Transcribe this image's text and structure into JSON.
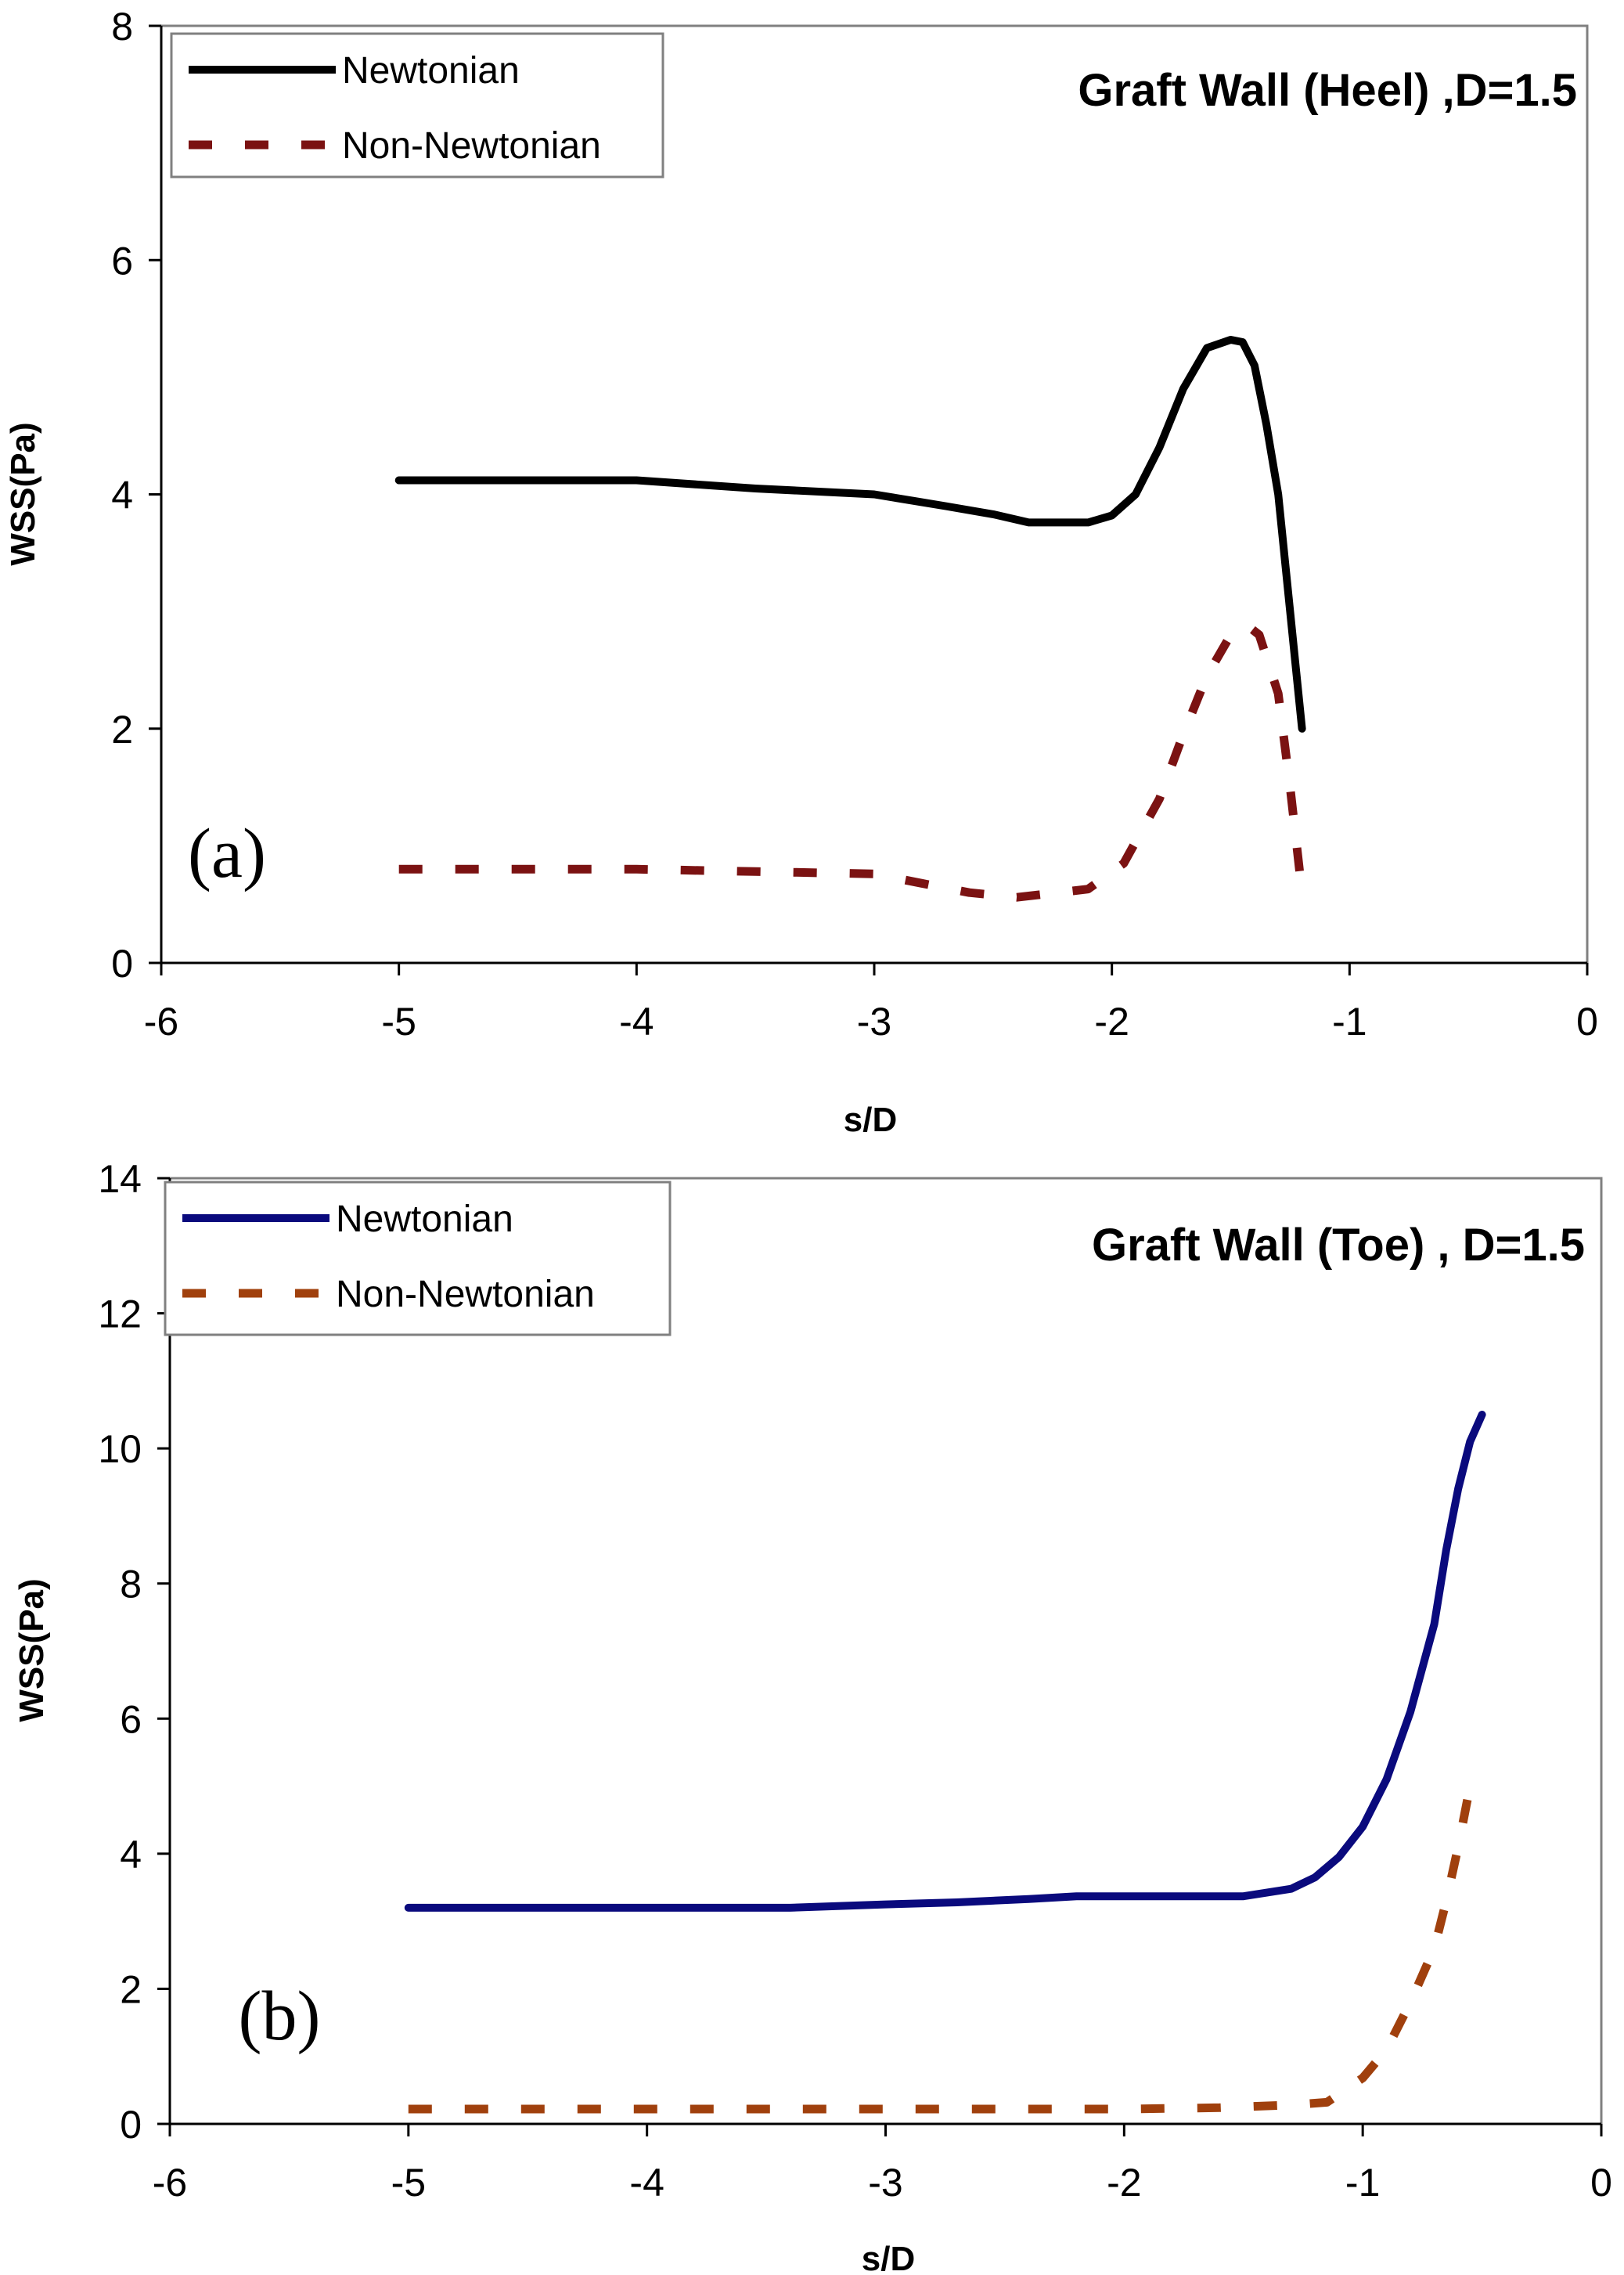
{
  "colors": {
    "newtonian_a": "#000000",
    "non_newtonian_a": "#7b1212",
    "newtonian_b": "#0a0a7d",
    "non_newtonian_b": "#a0400d"
  },
  "chart_data": [
    {
      "type": "line",
      "panel_label": "(a)",
      "title": "Graft Wall (Heel) ,D=1.5",
      "xlabel": "s/D",
      "ylabel": "WSS(Pa)",
      "xlim": [
        -6,
        0
      ],
      "ylim": [
        0,
        8
      ],
      "xticks": [
        -6,
        -5,
        -4,
        -3,
        -2,
        -1,
        0
      ],
      "yticks": [
        0,
        2,
        4,
        6,
        8
      ],
      "grid": false,
      "legend_position": "top-left",
      "series": [
        {
          "name": "Newtonian",
          "style": "solid",
          "points": [
            [
              -5.0,
              4.12
            ],
            [
              -4.0,
              4.12
            ],
            [
              -3.5,
              4.05
            ],
            [
              -3.0,
              4.0
            ],
            [
              -2.7,
              3.9
            ],
            [
              -2.5,
              3.83
            ],
            [
              -2.35,
              3.76
            ],
            [
              -2.1,
              3.76
            ],
            [
              -2.0,
              3.82
            ],
            [
              -1.9,
              4.0
            ],
            [
              -1.8,
              4.4
            ],
            [
              -1.7,
              4.9
            ],
            [
              -1.6,
              5.25
            ],
            [
              -1.5,
              5.32
            ],
            [
              -1.45,
              5.3
            ],
            [
              -1.4,
              5.1
            ],
            [
              -1.35,
              4.6
            ],
            [
              -1.3,
              4.0
            ],
            [
              -1.25,
              3.0
            ],
            [
              -1.2,
              2.0
            ]
          ]
        },
        {
          "name": "Non-Newtonian",
          "style": "dashed",
          "points": [
            [
              -5.0,
              0.8
            ],
            [
              -4.0,
              0.8
            ],
            [
              -3.5,
              0.78
            ],
            [
              -3.0,
              0.76
            ],
            [
              -2.8,
              0.68
            ],
            [
              -2.6,
              0.6
            ],
            [
              -2.4,
              0.56
            ],
            [
              -2.1,
              0.63
            ],
            [
              -1.95,
              0.85
            ],
            [
              -1.8,
              1.4
            ],
            [
              -1.7,
              1.95
            ],
            [
              -1.6,
              2.45
            ],
            [
              -1.5,
              2.8
            ],
            [
              -1.43,
              2.88
            ],
            [
              -1.38,
              2.8
            ],
            [
              -1.3,
              2.3
            ],
            [
              -1.25,
              1.5
            ],
            [
              -1.2,
              0.6
            ]
          ]
        }
      ]
    },
    {
      "type": "line",
      "panel_label": "(b)",
      "title": "Graft Wall (Toe) , D=1.5",
      "xlabel": "s/D",
      "ylabel": "WSS(Pa)",
      "xlim": [
        -6,
        0
      ],
      "ylim": [
        0,
        14
      ],
      "xticks": [
        -6,
        -5,
        -4,
        -3,
        -2,
        -1,
        0
      ],
      "yticks": [
        0,
        2,
        4,
        6,
        8,
        10,
        12,
        14
      ],
      "grid": false,
      "legend_position": "top-left",
      "series": [
        {
          "name": "Newtonian",
          "style": "solid",
          "points": [
            [
              -5.0,
              3.2
            ],
            [
              -4.0,
              3.2
            ],
            [
              -3.4,
              3.2
            ],
            [
              -3.0,
              3.25
            ],
            [
              -2.7,
              3.28
            ],
            [
              -2.4,
              3.33
            ],
            [
              -2.2,
              3.37
            ],
            [
              -1.8,
              3.37
            ],
            [
              -1.5,
              3.37
            ],
            [
              -1.3,
              3.48
            ],
            [
              -1.2,
              3.65
            ],
            [
              -1.1,
              3.95
            ],
            [
              -1.0,
              4.4
            ],
            [
              -0.9,
              5.1
            ],
            [
              -0.8,
              6.1
            ],
            [
              -0.7,
              7.4
            ],
            [
              -0.65,
              8.5
            ],
            [
              -0.6,
              9.4
            ],
            [
              -0.55,
              10.1
            ],
            [
              -0.5,
              10.5
            ]
          ]
        },
        {
          "name": "Non-Newtonian",
          "style": "dashed",
          "points": [
            [
              -5.0,
              0.22
            ],
            [
              -4.0,
              0.22
            ],
            [
              -3.0,
              0.22
            ],
            [
              -2.0,
              0.22
            ],
            [
              -1.6,
              0.24
            ],
            [
              -1.3,
              0.28
            ],
            [
              -1.15,
              0.32
            ],
            [
              -1.0,
              0.68
            ],
            [
              -0.9,
              1.1
            ],
            [
              -0.8,
              1.8
            ],
            [
              -0.7,
              2.6
            ],
            [
              -0.65,
              3.3
            ],
            [
              -0.6,
              4.1
            ],
            [
              -0.55,
              5.0
            ]
          ]
        }
      ]
    }
  ]
}
